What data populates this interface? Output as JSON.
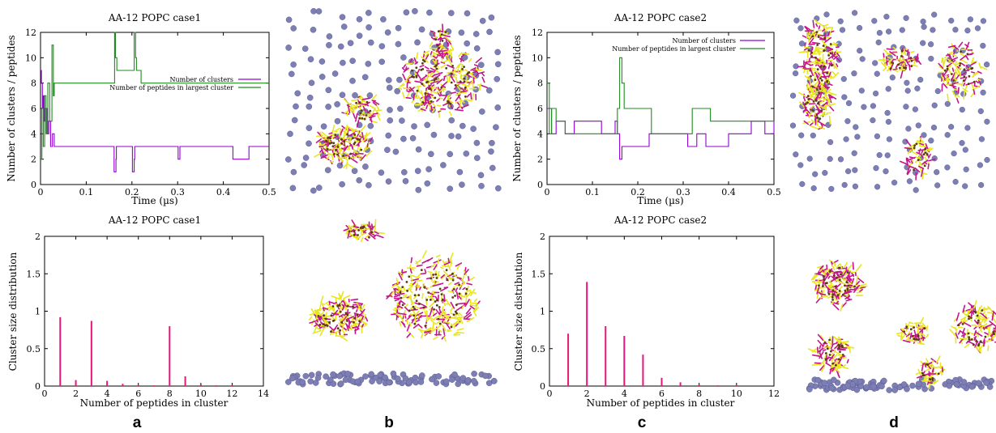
{
  "panel_labels": [
    "a",
    "b",
    "c",
    "d"
  ],
  "colors": {
    "clusters": "#9400d3",
    "largest": "#218b21",
    "dist": "#e6177a",
    "membrane": "#7d7fb4",
    "peptide_yellow": "#e7e61f",
    "peptide_magenta": "#c3168c"
  },
  "chart_data": [
    {
      "id": "a-top",
      "type": "line",
      "title": "AA-12 POPC case1",
      "xlabel": "Time (µs)",
      "ylabel": "Number of clusters / peptides",
      "xlim": [
        0,
        0.5
      ],
      "ylim": [
        0,
        12
      ],
      "xticks": [
        0,
        0.1,
        0.2,
        0.3,
        0.4,
        0.5
      ],
      "yticks": [
        0,
        2,
        4,
        6,
        8,
        10,
        12
      ],
      "legend_position": "center-right",
      "series": [
        {
          "name": "Number of clusters",
          "color_key": "clusters",
          "x": [
            0,
            0.002,
            0.004,
            0.006,
            0.008,
            0.01,
            0.014,
            0.018,
            0.022,
            0.026,
            0.03,
            0.16,
            0.161,
            0.165,
            0.166,
            0.2,
            0.201,
            0.205,
            0.206,
            0.3,
            0.301,
            0.305,
            0.306,
            0.42,
            0.421,
            0.455,
            0.456,
            0.5
          ],
          "y": [
            9,
            8,
            6,
            7,
            5,
            6,
            4,
            5,
            3,
            4,
            3,
            3,
            1,
            2,
            3,
            3,
            1,
            2,
            3,
            3,
            2,
            3,
            3,
            3,
            2,
            2,
            3,
            3
          ]
        },
        {
          "name": "Number of peptides in largest cluster",
          "color_key": "largest",
          "x": [
            0,
            0.003,
            0.006,
            0.009,
            0.012,
            0.016,
            0.02,
            0.025,
            0.028,
            0.03,
            0.16,
            0.162,
            0.164,
            0.167,
            0.2,
            0.205,
            0.208,
            0.21,
            0.22,
            0.23,
            0.3,
            0.34,
            0.45,
            0.5
          ],
          "y": [
            2,
            6,
            3,
            7,
            4,
            8,
            5,
            11,
            7,
            8,
            8,
            12,
            10,
            9,
            9,
            12,
            10,
            9,
            8,
            8,
            8,
            8,
            8,
            8
          ]
        }
      ]
    },
    {
      "id": "a-bottom",
      "type": "bar",
      "title": "AA-12 POPC case1",
      "xlabel": "Number of peptides in cluster",
      "ylabel": "Cluster size distribution",
      "xlim": [
        0,
        14
      ],
      "ylim": [
        0,
        2
      ],
      "xticks": [
        0,
        2,
        4,
        6,
        8,
        10,
        12,
        14
      ],
      "yticks": [
        0,
        0.5,
        1,
        1.5,
        2
      ],
      "x": [
        1,
        2,
        3,
        4,
        5,
        6,
        7,
        8,
        9,
        10,
        11,
        12
      ],
      "values": [
        0.92,
        0.08,
        0.87,
        0.07,
        0.03,
        0.01,
        0.01,
        0.8,
        0.13,
        0.02,
        0.01,
        0.01
      ]
    },
    {
      "id": "c-top",
      "type": "line",
      "title": "AA-12 POPC case2",
      "xlabel": "Time (µs)",
      "ylabel": "Number of clusters / peptides",
      "xlim": [
        0,
        0.5
      ],
      "ylim": [
        0,
        12
      ],
      "xticks": [
        0,
        0.1,
        0.2,
        0.3,
        0.4,
        0.5
      ],
      "yticks": [
        0,
        2,
        4,
        6,
        8,
        10,
        12
      ],
      "legend_position": "top-right",
      "series": [
        {
          "name": "Number of clusters",
          "color_key": "clusters",
          "x": [
            0,
            0.01,
            0.02,
            0.04,
            0.06,
            0.1,
            0.12,
            0.15,
            0.155,
            0.16,
            0.165,
            0.17,
            0.22,
            0.225,
            0.3,
            0.31,
            0.33,
            0.35,
            0.4,
            0.45,
            0.48,
            0.5
          ],
          "y": [
            6,
            4,
            5,
            4,
            5,
            5,
            4,
            5,
            4,
            2,
            3,
            3,
            3,
            4,
            4,
            3,
            4,
            3,
            4,
            5,
            4,
            5
          ]
        },
        {
          "name": "Number of peptides in largest cluster",
          "color_key": "largest",
          "x": [
            0,
            0.005,
            0.01,
            0.02,
            0.04,
            0.08,
            0.15,
            0.155,
            0.16,
            0.165,
            0.17,
            0.22,
            0.23,
            0.3,
            0.32,
            0.36,
            0.4,
            0.45,
            0.5
          ],
          "y": [
            8,
            4,
            6,
            5,
            4,
            4,
            4,
            6,
            10,
            8,
            6,
            6,
            4,
            4,
            6,
            5,
            5,
            5,
            5
          ]
        }
      ]
    },
    {
      "id": "c-bottom",
      "type": "bar",
      "title": "AA-12 POPC case2",
      "xlabel": "Number of peptides in cluster",
      "ylabel": "Cluster size distribution",
      "xlim": [
        0,
        12
      ],
      "ylim": [
        0,
        2
      ],
      "xticks": [
        0,
        2,
        4,
        6,
        8,
        10,
        12
      ],
      "yticks": [
        0,
        0.5,
        1,
        1.5,
        2
      ],
      "x": [
        1,
        2,
        3,
        4,
        5,
        6,
        7,
        8,
        9,
        10
      ],
      "values": [
        0.7,
        1.39,
        0.8,
        0.67,
        0.42,
        0.11,
        0.05,
        0.02,
        0.01,
        0.01
      ]
    }
  ]
}
